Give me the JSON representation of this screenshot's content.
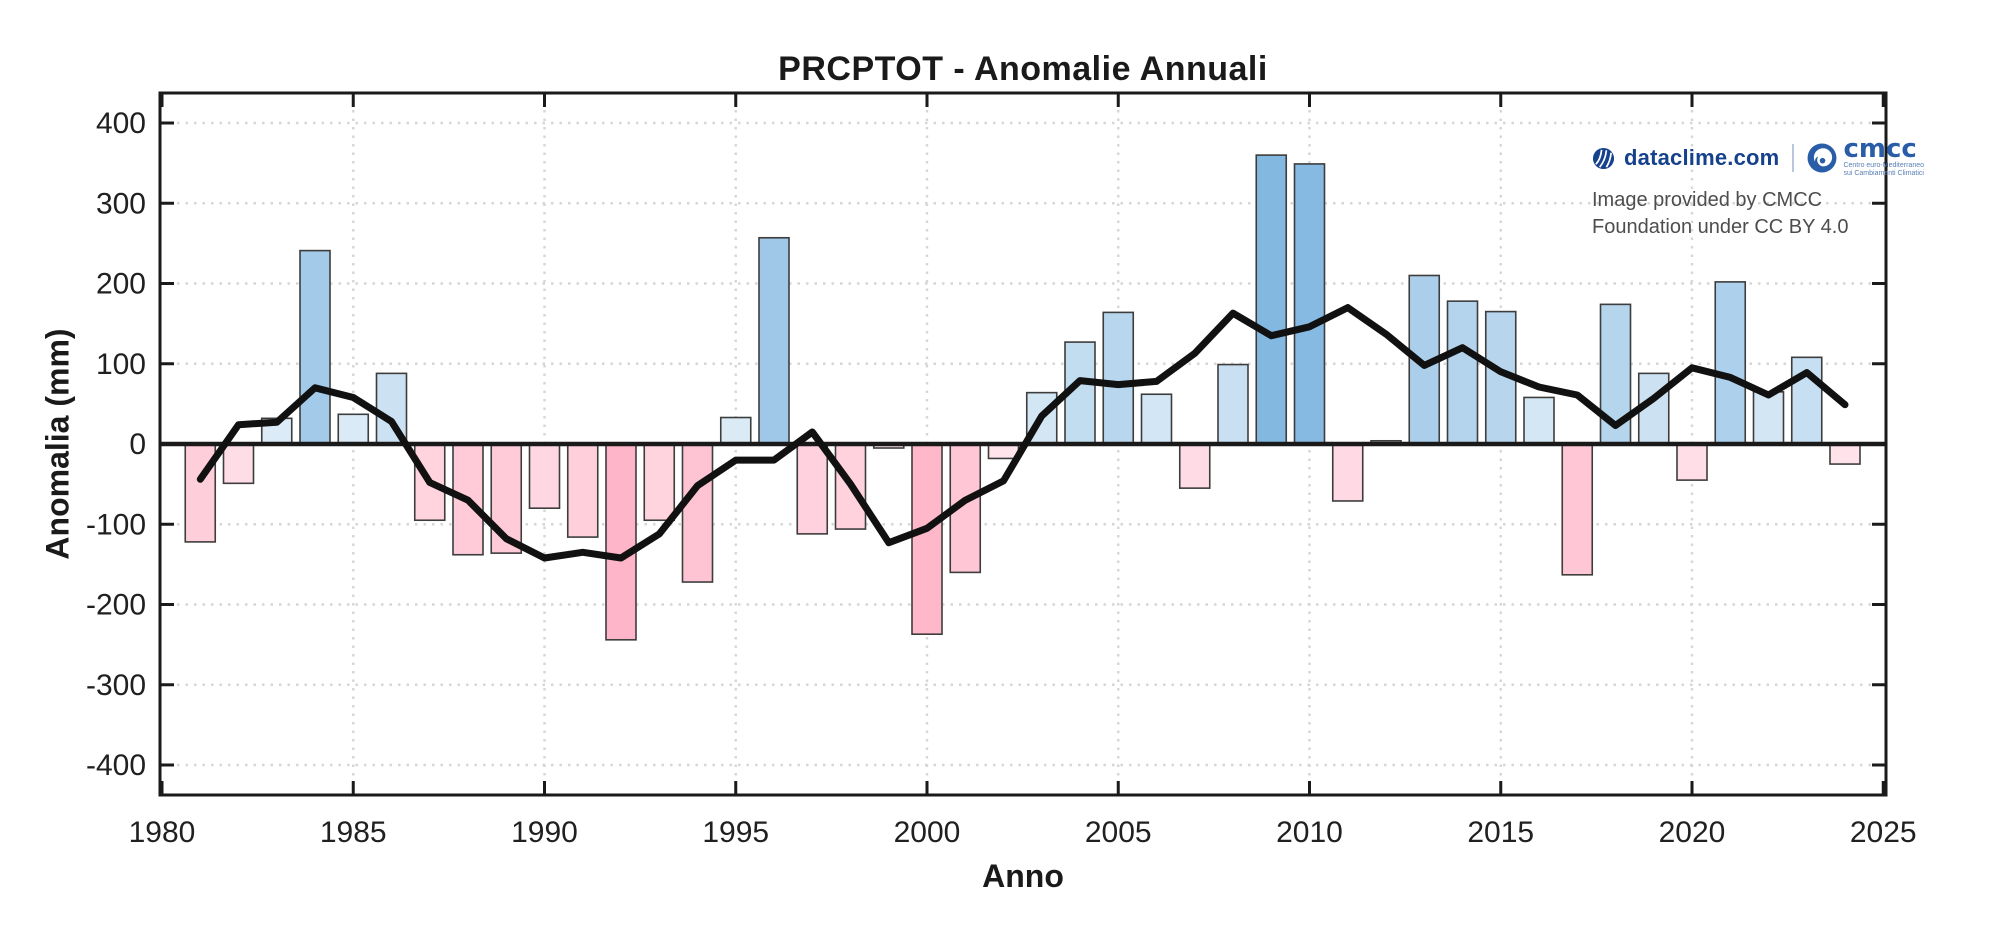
{
  "title": "PRCPTOT - Anomalie Annuali",
  "branding": {
    "dataclime": "dataclime.com",
    "cmcc": "cmcc",
    "cmcc_tagline_line1": "Centro euro-Mediterraneo",
    "cmcc_tagline_line2": "sui Cambiamenti Climatici",
    "credit_line1": "Image provided by CMCC",
    "credit_line2": "Foundation under CC BY 4.0"
  },
  "chart_data": {
    "type": "bar",
    "title": "PRCPTOT - Anomalie Annuali",
    "xlabel": "Anno",
    "ylabel": "Anomalia (mm)",
    "x_ticks": [
      1980,
      1985,
      1990,
      1995,
      2000,
      2005,
      2010,
      2015,
      2020,
      2025
    ],
    "y_ticks": [
      -400,
      -300,
      -200,
      -100,
      0,
      100,
      200,
      300,
      400
    ],
    "xlim": [
      1979.95,
      2025.3
    ],
    "ylim": [
      -437,
      437
    ],
    "grid": true,
    "categories": [
      1981,
      1982,
      1983,
      1984,
      1985,
      1986,
      1987,
      1988,
      1989,
      1990,
      1991,
      1992,
      1993,
      1994,
      1995,
      1996,
      1997,
      1998,
      1999,
      2000,
      2001,
      2002,
      2003,
      2004,
      2005,
      2006,
      2007,
      2008,
      2009,
      2010,
      2011,
      2012,
      2013,
      2014,
      2015,
      2016,
      2017,
      2018,
      2019,
      2020,
      2021,
      2022,
      2023,
      2024
    ],
    "series": [
      {
        "name": "Anomalia annuale",
        "type": "bar",
        "values": [
          -122,
          -49,
          32,
          241,
          37,
          88,
          -95,
          -138,
          -136,
          -80,
          -116,
          -244,
          -95,
          -172,
          33,
          257,
          -112,
          -106,
          -5,
          -237,
          -160,
          -18,
          64,
          127,
          164,
          62,
          -55,
          99,
          360,
          349,
          -71,
          4,
          210,
          178,
          165,
          58,
          -163,
          174,
          88,
          -45,
          202,
          65,
          108,
          -25
        ]
      },
      {
        "name": "Media mobile",
        "type": "line",
        "values": [
          -44,
          24,
          27,
          70,
          58,
          28,
          -48,
          -70,
          -118,
          -142,
          -135,
          -142,
          -112,
          -52,
          -20,
          -20,
          15,
          -50,
          -123,
          -105,
          -70,
          -46,
          35,
          79,
          74,
          78,
          113,
          163,
          135,
          146,
          170,
          137,
          98,
          120,
          90,
          71,
          61,
          23,
          57,
          95,
          83,
          61,
          89,
          49
        ]
      }
    ]
  },
  "colors": {
    "background": "#ffffff",
    "bar_positive_base": "#579fd7",
    "bar_negative_base": "#ff6b93",
    "bar_border": "#3d3d3d",
    "trend_line": "#111111",
    "grid": "#d6d6d6",
    "axis": "#1a1a1a",
    "tick_label": "#202020",
    "brand_blue": "#16418c",
    "cmcc_blue": "#2a5da8",
    "credit_gray": "#4d4d4d"
  }
}
